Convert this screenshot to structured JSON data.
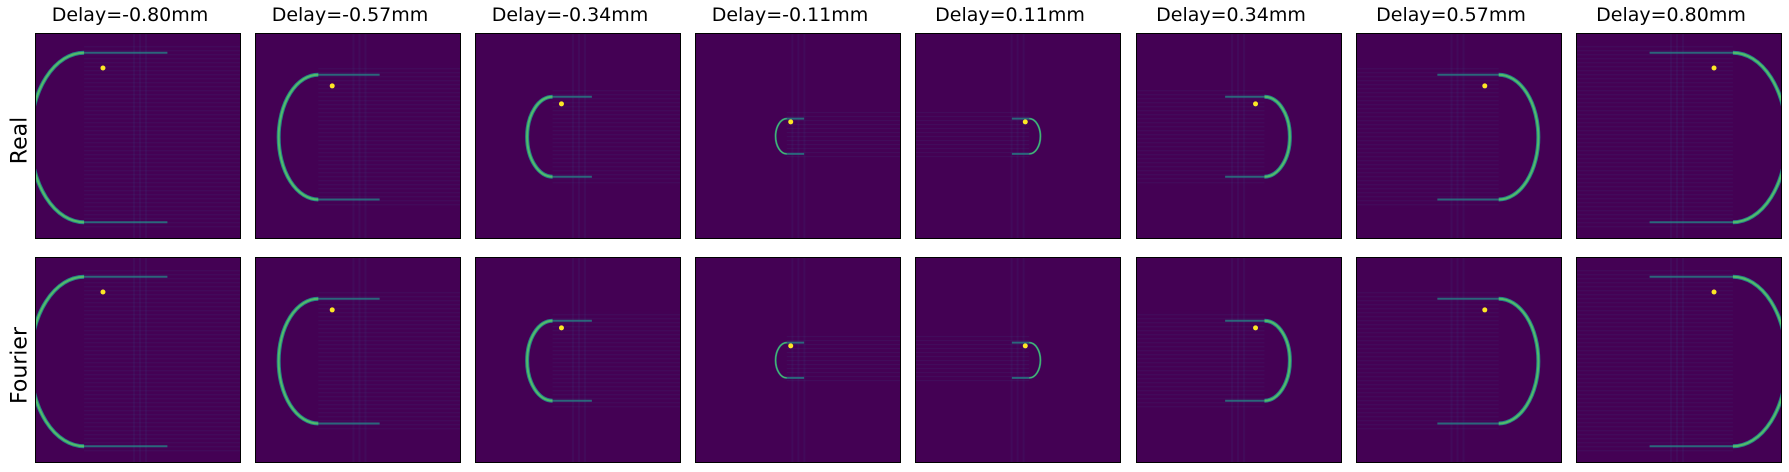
{
  "columns": [
    {
      "title": "Delay=-0.80mm",
      "delay_mm": -0.8
    },
    {
      "title": "Delay=-0.57mm",
      "delay_mm": -0.57
    },
    {
      "title": "Delay=-0.34mm",
      "delay_mm": -0.34
    },
    {
      "title": "Delay=-0.11mm",
      "delay_mm": -0.11
    },
    {
      "title": "Delay=0.11mm",
      "delay_mm": 0.11
    },
    {
      "title": "Delay=0.34mm",
      "delay_mm": 0.34
    },
    {
      "title": "Delay=0.57mm",
      "delay_mm": 0.57
    },
    {
      "title": "Delay=0.80mm",
      "delay_mm": 0.8
    }
  ],
  "rows": [
    {
      "label": "Real"
    },
    {
      "label": "Fourier"
    }
  ],
  "colors": {
    "background": "#440154",
    "low": "#3b528b",
    "mid": "#21918c",
    "high": "#5ec962",
    "peak": "#fde725"
  },
  "colormap": "viridis"
}
